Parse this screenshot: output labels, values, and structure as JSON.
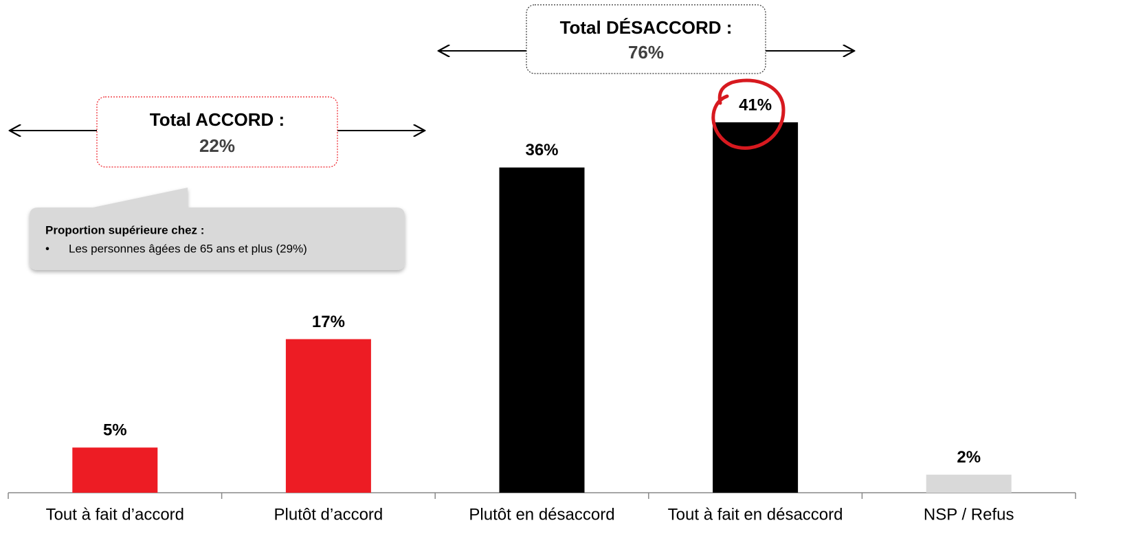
{
  "chart_data": {
    "type": "bar",
    "categories": [
      "Tout à fait d’accord",
      "Plutôt d’accord",
      "Plutôt en désaccord",
      "Tout à fait en désaccord",
      "NSP / Refus"
    ],
    "values": [
      5,
      17,
      36,
      41,
      2
    ],
    "value_labels": [
      "5%",
      "17%",
      "36%",
      "41%",
      "2%"
    ],
    "colors": [
      "#ed1c24",
      "#ed1c24",
      "#000000",
      "#000000",
      "#d9d9d9"
    ],
    "annotations": [
      {
        "title": "Total ACCORD :",
        "value": "22%"
      },
      {
        "title": "Total DÉSACCORD :",
        "value": "76%"
      }
    ],
    "callout": {
      "title": "Proportion supérieure chez :",
      "items": [
        "Les personnes âgées de 65 ans et plus (29%)"
      ]
    }
  }
}
